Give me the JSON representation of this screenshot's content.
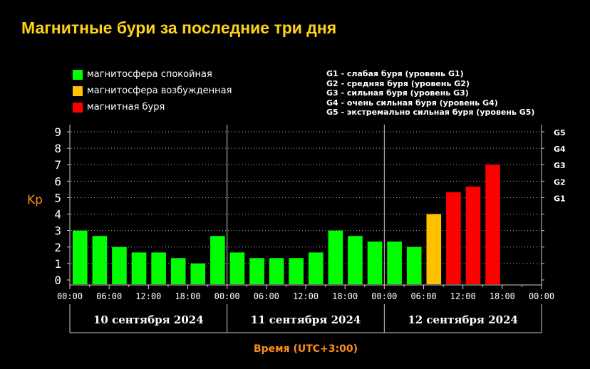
{
  "title": "Магнитные бури за последние три дня",
  "legend": [
    {
      "label": "магнитосфера спокойная",
      "color": "#00ff00"
    },
    {
      "label": "магнитосфера возбужденная",
      "color": "#ffc000"
    },
    {
      "label": "магнитная буря",
      "color": "#ff0000"
    }
  ],
  "g_scale": [
    "G1 - слабая буря (уровень G1)",
    "G2 - средняя буря (уровень G2)",
    "G3 - сильная буря (уровень G3)",
    "G4 - очень сильная буря (уровень G4)",
    "G5 - экстремально сильная буря (уровень G5)"
  ],
  "chart_data": {
    "type": "bar",
    "ylabel": "Kp",
    "xlabel": "Время (UTC+3:00)",
    "ylim": [
      0,
      9
    ],
    "yticks": [
      "0",
      "1",
      "2",
      "3",
      "4",
      "5",
      "6",
      "7",
      "8",
      "9"
    ],
    "right_ticks": [
      {
        "value": 5,
        "label": "G1"
      },
      {
        "value": 6,
        "label": "G2"
      },
      {
        "value": 7,
        "label": "G3"
      },
      {
        "value": 8,
        "label": "G4"
      },
      {
        "value": 9,
        "label": "G5"
      }
    ],
    "xtick_labels": [
      "00:00",
      "06:00",
      "12:00",
      "18:00",
      "00:00",
      "06:00",
      "12:00",
      "18:00",
      "00:00",
      "06:00",
      "12:00",
      "18:00",
      "00:00"
    ],
    "days": [
      "10 сентября 2024",
      "11 сентября 2024",
      "12 сентября 2024"
    ],
    "grid": true,
    "interval_hours": 3,
    "values": [
      3.0,
      2.67,
      2.0,
      1.67,
      1.67,
      1.33,
      1.0,
      2.67,
      1.67,
      1.33,
      1.33,
      1.33,
      1.67,
      3.0,
      2.67,
      2.33,
      2.33,
      2.0,
      4.0,
      5.33,
      5.67,
      7.0,
      null,
      null
    ],
    "colors": {
      "quiet": "#00ff00",
      "active": "#ffc000",
      "storm": "#ff0000"
    }
  }
}
